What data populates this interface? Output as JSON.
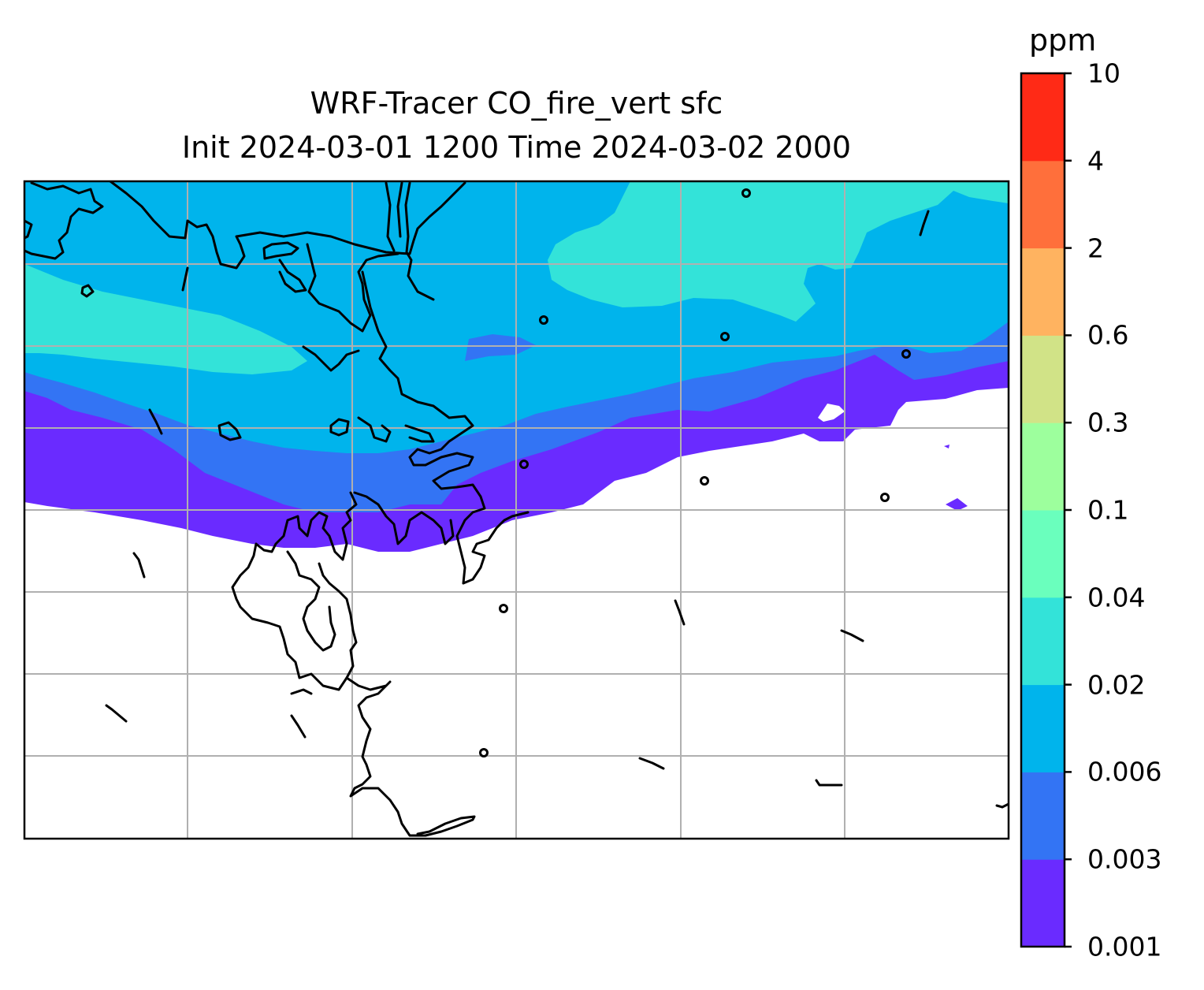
{
  "title": {
    "line1": "WRF-Tracer CO_fire_vert sfc",
    "line2": "Init 2024-03-01 1200 Time 2024-03-02 2000"
  },
  "colorbar": {
    "unit": "ppm",
    "ticks": [
      "0.001",
      "0.003",
      "0.006",
      "0.02",
      "0.04",
      "0.1",
      "0.3",
      "0.6",
      "2",
      "4",
      "10"
    ],
    "colors": [
      "#6a2bff",
      "#3374f4",
      "#00b4ec",
      "#33e3d9",
      "#6affbd",
      "#9dff9d",
      "#d1e387",
      "#ffb360",
      "#ff6f3b",
      "#ff2a16"
    ]
  },
  "map": {
    "grid": true,
    "coastline_color": "#000000",
    "grid_color": "#b0b0b0"
  }
}
